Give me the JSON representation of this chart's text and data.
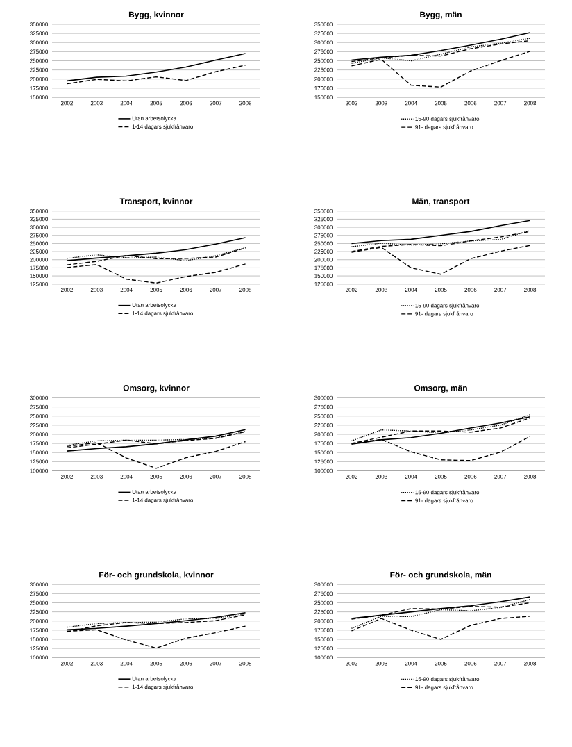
{
  "chart_data": [
    {
      "type": "line",
      "title": "Bygg, kvinnor",
      "categories": [
        "2002",
        "2003",
        "2004",
        "2005",
        "2006",
        "2007",
        "2008"
      ],
      "ylim": [
        150000,
        350000
      ],
      "yticks": [
        150000,
        175000,
        200000,
        225000,
        250000,
        275000,
        300000,
        325000,
        350000
      ],
      "grid": "y",
      "legend": "bottom",
      "series": [
        {
          "name": "Utan arbetsolycka",
          "color": "#000000",
          "line_style": "solid",
          "values": [
            195000,
            205000,
            208000,
            219000,
            233000,
            252000,
            270000
          ]
        },
        {
          "name": "1-14 dagars sjukfrånvaro",
          "color": "#000000",
          "line_style": "dashed",
          "values": [
            187000,
            199000,
            195000,
            206000,
            196000,
            220000,
            238000
          ]
        }
      ]
    },
    {
      "type": "line",
      "title": "Bygg, män",
      "categories": [
        "2002",
        "2003",
        "2004",
        "2005",
        "2006",
        "2007",
        "2008"
      ],
      "ylim": [
        150000,
        350000
      ],
      "yticks": [
        150000,
        175000,
        200000,
        225000,
        250000,
        275000,
        300000,
        325000,
        350000
      ],
      "grid": "y",
      "legend": "bottom",
      "series": [
        {
          "color": "#000000",
          "line_style": "solid",
          "values": [
            252000,
            260000,
            265000,
            278000,
            293000,
            309000,
            327000
          ]
        },
        {
          "color": "#000000",
          "line_style": "dashed",
          "values": [
            248000,
            258000,
            265000,
            263000,
            283000,
            296000,
            305000
          ]
        },
        {
          "name": "15-90 dagars sjukfrånvaro",
          "color": "#000000",
          "line_style": "dotted",
          "values": [
            243000,
            258000,
            250000,
            268000,
            288000,
            298000,
            312000
          ]
        },
        {
          "name": "91- dagars sjukfrånvaro",
          "color": "#000000",
          "line_style": "dashed",
          "values": [
            236000,
            254000,
            183000,
            178000,
            222000,
            250000,
            276000
          ]
        }
      ]
    },
    {
      "type": "line",
      "title": "Transport, kvinnor",
      "categories": [
        "2002",
        "2003",
        "2004",
        "2005",
        "2006",
        "2007",
        "2008"
      ],
      "ylim": [
        125000,
        350000
      ],
      "yticks": [
        125000,
        150000,
        175000,
        200000,
        225000,
        250000,
        275000,
        300000,
        325000,
        350000
      ],
      "grid": "y",
      "legend": "bottom",
      "series": [
        {
          "name": "Utan arbetsolycka",
          "color": "#000000",
          "line_style": "solid",
          "values": [
            197000,
            205000,
            212000,
            220000,
            231000,
            248000,
            268000
          ]
        },
        {
          "name": "1-14 dagars sjukfrånvaro",
          "color": "#000000",
          "line_style": "dashed",
          "values": [
            184000,
            195000,
            213000,
            203000,
            204000,
            208000,
            236000
          ]
        },
        {
          "color": "#000000",
          "line_style": "dotted",
          "values": [
            204000,
            215000,
            206000,
            208000,
            197000,
            212000,
            237000
          ]
        },
        {
          "color": "#000000",
          "line_style": "dashed",
          "values": [
            176000,
            185000,
            140000,
            128000,
            148000,
            161000,
            187000
          ]
        }
      ]
    },
    {
      "type": "line",
      "title": "Män, transport",
      "categories": [
        "2002",
        "2003",
        "2004",
        "2005",
        "2006",
        "2007",
        "2008"
      ],
      "ylim": [
        125000,
        350000
      ],
      "yticks": [
        125000,
        150000,
        175000,
        200000,
        225000,
        250000,
        275000,
        300000,
        325000,
        350000
      ],
      "grid": "y",
      "legend": "bottom",
      "series": [
        {
          "color": "#000000",
          "line_style": "solid",
          "values": [
            250000,
            259000,
            263000,
            275000,
            287000,
            305000,
            321000
          ]
        },
        {
          "color": "#000000",
          "line_style": "dashed",
          "values": [
            225000,
            241000,
            247000,
            243000,
            258000,
            270000,
            287000
          ]
        },
        {
          "name": "15-90 dagars sjukfrånvaro",
          "color": "#000000",
          "line_style": "dotted",
          "values": [
            240000,
            251000,
            245000,
            249000,
            258000,
            262000,
            290000
          ]
        },
        {
          "name": "91- dagars sjukfrånvaro",
          "color": "#000000",
          "line_style": "dashed",
          "values": [
            223000,
            238000,
            175000,
            155000,
            203000,
            226000,
            244000
          ]
        }
      ]
    },
    {
      "type": "line",
      "title": "Omsorg, kvinnor",
      "categories": [
        "2002",
        "2003",
        "2004",
        "2005",
        "2006",
        "2007",
        "2008"
      ],
      "ylim": [
        100000,
        300000
      ],
      "yticks": [
        100000,
        125000,
        150000,
        175000,
        200000,
        225000,
        250000,
        275000,
        300000
      ],
      "grid": "y",
      "legend": "bottom",
      "series": [
        {
          "name": "Utan arbetsolycka",
          "color": "#000000",
          "line_style": "solid",
          "values": [
            154000,
            161000,
            166000,
            174000,
            185000,
            195000,
            213000
          ]
        },
        {
          "name": "1-14 dagars sjukfrånvaro",
          "color": "#000000",
          "line_style": "dashed",
          "values": [
            163000,
            173000,
            184000,
            174000,
            183000,
            189000,
            207000
          ]
        },
        {
          "color": "#000000",
          "line_style": "dotted",
          "values": [
            170000,
            182000,
            184000,
            184000,
            186000,
            190000,
            208000
          ]
        },
        {
          "color": "#000000",
          "line_style": "dashed",
          "values": [
            167000,
            177000,
            135000,
            107000,
            136000,
            153000,
            180000
          ]
        }
      ]
    },
    {
      "type": "line",
      "title": "Omsorg, män",
      "categories": [
        "2002",
        "2003",
        "2004",
        "2005",
        "2006",
        "2007",
        "2008"
      ],
      "ylim": [
        100000,
        300000
      ],
      "yticks": [
        100000,
        125000,
        150000,
        175000,
        200000,
        225000,
        250000,
        275000,
        300000
      ],
      "grid": "y",
      "legend": "bottom",
      "series": [
        {
          "color": "#000000",
          "line_style": "solid",
          "values": [
            173000,
            185000,
            191000,
            203000,
            217000,
            231000,
            248000
          ]
        },
        {
          "color": "#000000",
          "line_style": "dashed",
          "values": [
            175000,
            192000,
            209000,
            209000,
            206000,
            217000,
            245000
          ]
        },
        {
          "name": "15-90 dagars sjukfrånvaro",
          "color": "#000000",
          "line_style": "dotted",
          "values": [
            182000,
            212000,
            209000,
            204000,
            212000,
            225000,
            254000
          ]
        },
        {
          "name": "91- dagars sjukfrånvaro",
          "color": "#000000",
          "line_style": "dashed",
          "values": [
            175000,
            186000,
            152000,
            130000,
            128000,
            151000,
            194000
          ]
        }
      ]
    },
    {
      "type": "line",
      "title": "För- och grundskola, kvinnor",
      "categories": [
        "2002",
        "2003",
        "2004",
        "2005",
        "2006",
        "2007",
        "2008"
      ],
      "ylim": [
        100000,
        300000
      ],
      "yticks": [
        100000,
        125000,
        150000,
        175000,
        200000,
        225000,
        250000,
        275000,
        300000
      ],
      "grid": "y",
      "legend": "bottom",
      "series": [
        {
          "name": "Utan arbetsolycka",
          "color": "#000000",
          "line_style": "solid",
          "values": [
            176000,
            180000,
            186000,
            193000,
            201000,
            210000,
            223000
          ]
        },
        {
          "name": "1-14 dagars sjukfrånvaro",
          "color": "#000000",
          "line_style": "dashed",
          "values": [
            170000,
            187000,
            196000,
            193000,
            196000,
            201000,
            217000
          ]
        },
        {
          "color": "#000000",
          "line_style": "dotted",
          "values": [
            183000,
            193000,
            196000,
            197000,
            206000,
            207000,
            220000
          ]
        },
        {
          "color": "#000000",
          "line_style": "dashed",
          "values": [
            172000,
            176000,
            148000,
            126000,
            153000,
            168000,
            186000
          ]
        }
      ]
    },
    {
      "type": "line",
      "title": "För- och grundskola, män",
      "categories": [
        "2002",
        "2003",
        "2004",
        "2005",
        "2006",
        "2007",
        "2008"
      ],
      "ylim": [
        100000,
        300000
      ],
      "yticks": [
        100000,
        125000,
        150000,
        175000,
        200000,
        225000,
        250000,
        275000,
        300000
      ],
      "grid": "y",
      "legend": "bottom",
      "series": [
        {
          "color": "#000000",
          "line_style": "solid",
          "values": [
            207000,
            216000,
            225000,
            234000,
            242000,
            253000,
            266000
          ]
        },
        {
          "color": "#000000",
          "line_style": "dashed",
          "values": [
            205000,
            216000,
            234000,
            233000,
            240000,
            238000,
            250000
          ]
        },
        {
          "name": "15-90 dagars sjukfrånvaro",
          "color": "#000000",
          "line_style": "dotted",
          "values": [
            180000,
            213000,
            212000,
            231000,
            228000,
            237000,
            259000
          ]
        },
        {
          "name": "91- dagars sjukfrånvaro",
          "color": "#000000",
          "line_style": "dashed",
          "values": [
            173000,
            207000,
            175000,
            150000,
            188000,
            207000,
            213000
          ]
        }
      ]
    }
  ]
}
